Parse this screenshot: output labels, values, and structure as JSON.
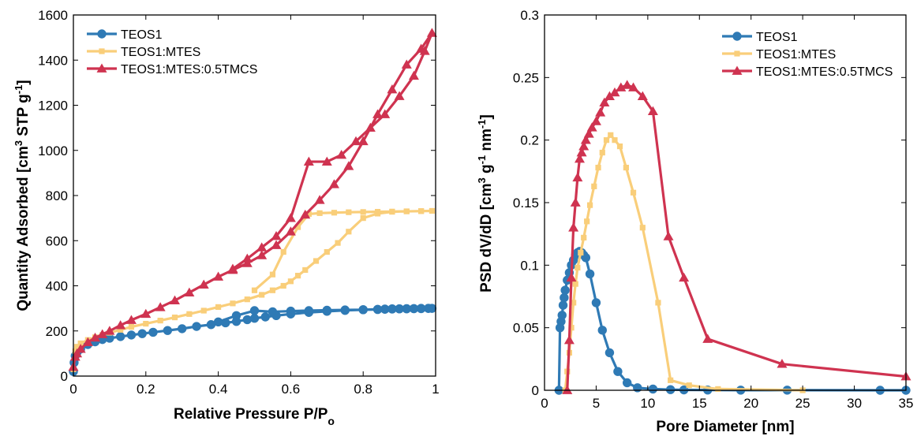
{
  "chart_data": [
    {
      "type": "line",
      "xlabel": "Relative Pressure P/P",
      "xlabel_sub": "o",
      "ylabel": "Quantity Adsorbed [cm",
      "ylabel_sup": "3",
      "ylabel_mid": " STP g",
      "ylabel_sup2": "-1",
      "ylabel_end": "]",
      "xlim": [
        0,
        1
      ],
      "ylim": [
        0,
        1600
      ],
      "xticks": [
        "0",
        "0.2",
        "0.4",
        "0.6",
        "0.8",
        "1"
      ],
      "yticks": [
        "0",
        "200",
        "400",
        "600",
        "800",
        "1000",
        "1200",
        "1400",
        "1600"
      ],
      "legend_position": "top-left",
      "legend": [
        "TEOS1",
        "TEOS1:MTES",
        "TEOS1:MTES:0.5TMCS"
      ],
      "series": [
        {
          "name": "TEOS1",
          "color": "#2f7ab5",
          "marker": "circle",
          "x": [
            0.0,
            0.002,
            0.005,
            0.01,
            0.02,
            0.04,
            0.06,
            0.08,
            0.1,
            0.13,
            0.16,
            0.19,
            0.22,
            0.26,
            0.3,
            0.34,
            0.38,
            0.42,
            0.45,
            0.48,
            0.5,
            0.53,
            0.56,
            0.6,
            0.65,
            0.7,
            0.75,
            0.8,
            0.84,
            0.86,
            0.88,
            0.9,
            0.92,
            0.94,
            0.96,
            0.98,
            0.99,
            0.98,
            0.96,
            0.94,
            0.92,
            0.9,
            0.88,
            0.86,
            0.84,
            0.8,
            0.75,
            0.7,
            0.65,
            0.6,
            0.55,
            0.5,
            0.45,
            0.4
          ],
          "y": [
            20,
            60,
            90,
            105,
            120,
            140,
            152,
            162,
            168,
            175,
            182,
            188,
            194,
            202,
            210,
            220,
            228,
            236,
            242,
            250,
            256,
            262,
            268,
            275,
            282,
            287,
            291,
            294,
            296,
            297,
            298,
            298,
            299,
            299,
            300,
            300,
            300,
            300,
            299,
            299,
            298,
            298,
            297,
            296,
            295,
            294,
            293,
            292,
            290,
            288,
            285,
            290,
            268,
            240
          ]
        },
        {
          "name": "TEOS1:MTES",
          "color": "#f9ce7a",
          "marker": "square",
          "x": [
            0.0,
            0.005,
            0.01,
            0.02,
            0.04,
            0.06,
            0.08,
            0.1,
            0.13,
            0.16,
            0.2,
            0.24,
            0.28,
            0.32,
            0.36,
            0.4,
            0.44,
            0.48,
            0.52,
            0.55,
            0.58,
            0.6,
            0.62,
            0.64,
            0.67,
            0.7,
            0.73,
            0.76,
            0.8,
            0.84,
            0.88,
            0.92,
            0.96,
            0.99,
            0.96,
            0.92,
            0.88,
            0.84,
            0.8,
            0.76,
            0.72,
            0.68,
            0.65,
            0.62,
            0.58,
            0.55,
            0.5
          ],
          "y": [
            30,
            110,
            130,
            145,
            160,
            172,
            182,
            192,
            205,
            218,
            232,
            246,
            260,
            275,
            290,
            306,
            322,
            340,
            360,
            380,
            400,
            420,
            445,
            470,
            510,
            550,
            590,
            640,
            700,
            720,
            728,
            730,
            731,
            732,
            731,
            730,
            729,
            728,
            727,
            726,
            724,
            722,
            718,
            660,
            550,
            450,
            380
          ]
        },
        {
          "name": "TEOS1:MTES:0.5TMCS",
          "color": "#cf3350",
          "marker": "triangle",
          "x": [
            0.0,
            0.005,
            0.01,
            0.02,
            0.04,
            0.06,
            0.08,
            0.1,
            0.13,
            0.16,
            0.2,
            0.24,
            0.28,
            0.32,
            0.36,
            0.4,
            0.44,
            0.48,
            0.52,
            0.56,
            0.6,
            0.64,
            0.68,
            0.72,
            0.76,
            0.8,
            0.84,
            0.88,
            0.92,
            0.96,
            0.99,
            0.97,
            0.94,
            0.9,
            0.86,
            0.82,
            0.78,
            0.74,
            0.7,
            0.65,
            0.6,
            0.56,
            0.52,
            0.48,
            0.44
          ],
          "y": [
            40,
            85,
            100,
            120,
            150,
            170,
            185,
            200,
            225,
            248,
            275,
            305,
            335,
            370,
            405,
            440,
            470,
            500,
            535,
            580,
            640,
            715,
            780,
            850,
            930,
            1040,
            1160,
            1270,
            1380,
            1450,
            1520,
            1440,
            1330,
            1240,
            1160,
            1100,
            1040,
            980,
            950,
            950,
            700,
            620,
            570,
            520,
            475
          ]
        }
      ]
    },
    {
      "type": "line",
      "xlabel": "Pore Diameter [nm]",
      "ylabel": "PSD dV/dD [cm",
      "ylabel_sup": "3",
      "ylabel_mid": " g",
      "ylabel_sup2": "-1",
      "ylabel_mid2": " nm",
      "ylabel_sup3": "-1",
      "ylabel_end": "]",
      "xlim": [
        0,
        35
      ],
      "ylim": [
        0,
        0.3
      ],
      "xticks": [
        "0",
        "5",
        "10",
        "15",
        "20",
        "25",
        "30",
        "35"
      ],
      "yticks": [
        "0",
        "0.05",
        "0.1",
        "0.15",
        "0.2",
        "0.25",
        "0.3"
      ],
      "legend_position": "top-right",
      "legend": [
        "TEOS1",
        "TEOS1:MTES",
        "TEOS1:MTES:0.5TMCS"
      ],
      "series": [
        {
          "name": "TEOS1",
          "color": "#2f7ab5",
          "marker": "circle",
          "x": [
            1.4,
            1.5,
            1.6,
            1.7,
            1.8,
            1.9,
            2.0,
            2.2,
            2.4,
            2.6,
            2.8,
            3.0,
            3.2,
            3.4,
            3.6,
            3.8,
            4.0,
            4.4,
            5.0,
            5.6,
            6.3,
            7.1,
            8.0,
            9.0,
            10.5,
            12.2,
            13.5,
            15.8,
            19.0,
            23.5,
            32.5,
            35.0
          ],
          "y": [
            0.0,
            0.05,
            0.055,
            0.06,
            0.068,
            0.074,
            0.08,
            0.088,
            0.094,
            0.1,
            0.104,
            0.108,
            0.11,
            0.111,
            0.11,
            0.108,
            0.106,
            0.093,
            0.07,
            0.048,
            0.03,
            0.015,
            0.006,
            0.002,
            0.001,
            0.0005,
            0.0003,
            0.0002,
            0.0001,
            0.0001,
            0.0,
            0.0
          ]
        },
        {
          "name": "TEOS1:MTES",
          "color": "#f9ce7a",
          "marker": "square",
          "x": [
            2.0,
            2.2,
            2.4,
            2.6,
            2.8,
            3.0,
            3.2,
            3.5,
            3.8,
            4.1,
            4.4,
            4.8,
            5.2,
            5.6,
            6.0,
            6.4,
            6.8,
            7.3,
            7.9,
            8.6,
            9.5,
            11.0,
            12.2,
            14.0,
            16.8,
            25.0
          ],
          "y": [
            0.0,
            0.015,
            0.03,
            0.05,
            0.07,
            0.085,
            0.098,
            0.11,
            0.122,
            0.135,
            0.148,
            0.163,
            0.178,
            0.19,
            0.2,
            0.204,
            0.2,
            0.195,
            0.178,
            0.158,
            0.13,
            0.07,
            0.008,
            0.004,
            0.001,
            0.0
          ]
        },
        {
          "name": "TEOS1:MTES:0.5TMCS",
          "color": "#cf3350",
          "marker": "triangle",
          "x": [
            2.2,
            2.4,
            2.6,
            2.8,
            3.0,
            3.2,
            3.4,
            3.6,
            3.8,
            4.0,
            4.3,
            4.6,
            5.0,
            5.4,
            5.8,
            6.3,
            6.8,
            7.4,
            8.0,
            8.6,
            9.5,
            10.5,
            12.0,
            13.5,
            15.8,
            23.0,
            35.0
          ],
          "y": [
            0.0,
            0.04,
            0.09,
            0.13,
            0.15,
            0.17,
            0.185,
            0.19,
            0.195,
            0.2,
            0.205,
            0.21,
            0.215,
            0.222,
            0.23,
            0.235,
            0.238,
            0.242,
            0.244,
            0.242,
            0.235,
            0.223,
            0.123,
            0.09,
            0.041,
            0.021,
            0.011
          ]
        }
      ]
    }
  ]
}
